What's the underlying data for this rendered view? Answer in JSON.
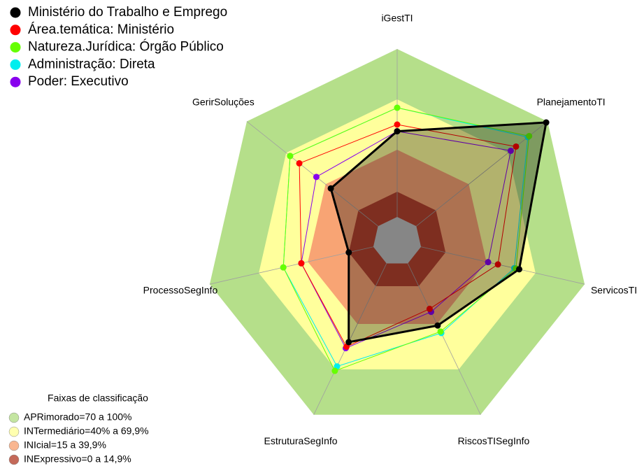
{
  "chart_data": {
    "type": "radar",
    "categories": [
      "iGestTI",
      "PlanejamentoTI",
      "ServicosTI",
      "RiscosTISegInfo",
      "EstruturaSegInfo",
      "ProcessoSegInfo",
      "GerirSoluções"
    ],
    "ylim": [
      0,
      100
    ],
    "series": [
      {
        "name": "Ministério do Trabalho e Emprego",
        "color": "#000000",
        "values": [
          51,
          99,
          60,
          41,
          52,
          15,
          36
        ]
      },
      {
        "name": "Área.temática: Ministério",
        "color": "#ff0000",
        "values": [
          55,
          76,
          47,
          30,
          55,
          44,
          60
        ]
      },
      {
        "name": "Natureza.Jurídica: Órgão Público",
        "color": "#66ff00",
        "values": [
          65,
          86,
          58,
          45,
          71,
          55,
          67
        ]
      },
      {
        "name": "Administração: Direta",
        "color": "#00eeee",
        "values": [
          65,
          85,
          57,
          46,
          68,
          55,
          67
        ]
      },
      {
        "name": "Poder: Executivo",
        "color": "#8800ee",
        "values": [
          51,
          72,
          41,
          32,
          56,
          44,
          47
        ]
      }
    ],
    "bands_title": "Faixas de classificação",
    "bands": [
      {
        "label": "APRimorado=70 a 100%",
        "color": "#b5df8a",
        "range": [
          70,
          100
        ]
      },
      {
        "label": "INTermediário=40% a 69,9%",
        "color": "#ffff9c",
        "range": [
          40,
          70
        ]
      },
      {
        "label": "INIcial=15 a 39,9%",
        "color": "#f8a474",
        "range": [
          15,
          40
        ]
      },
      {
        "label": "INExpressivo=0 a 14,9%",
        "color": "#b5432f",
        "range": [
          0,
          15
        ]
      }
    ]
  }
}
